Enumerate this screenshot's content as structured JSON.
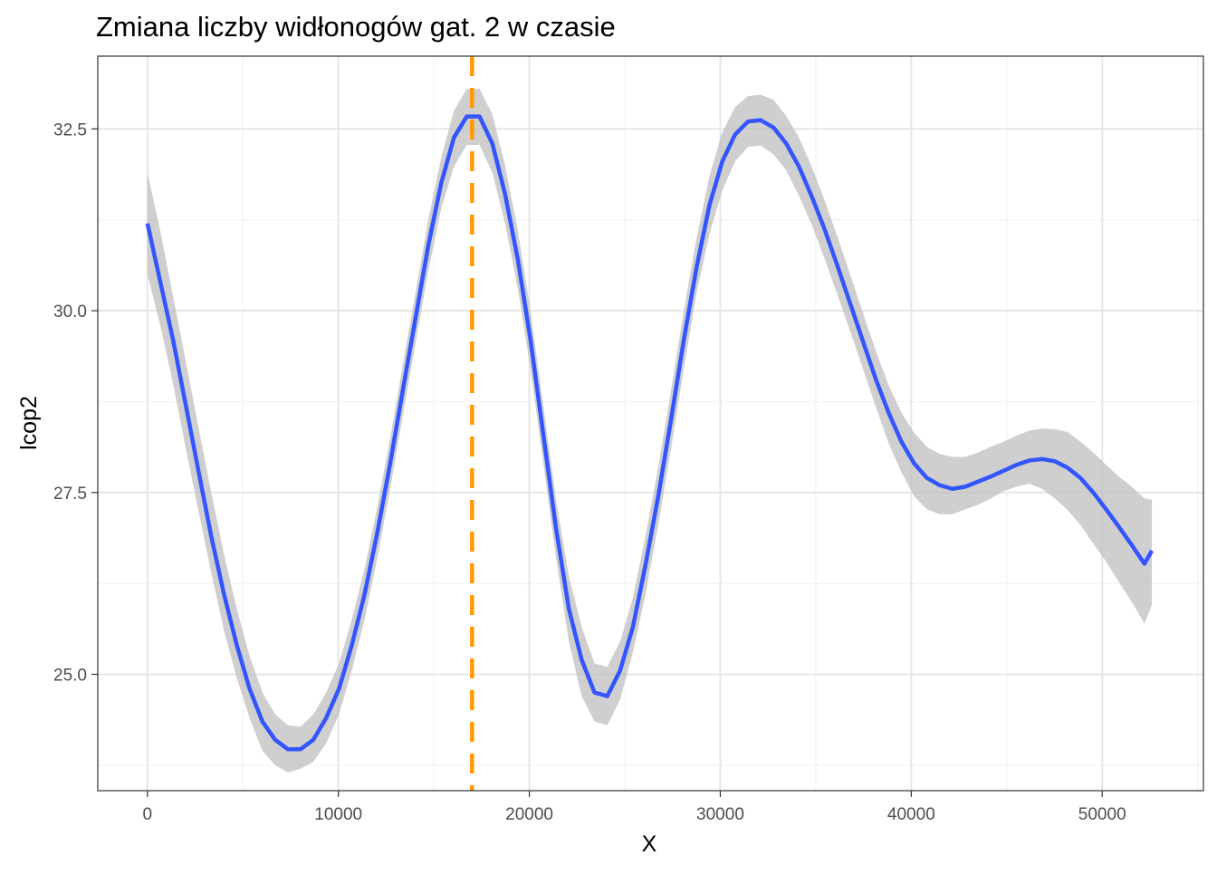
{
  "chart_data": {
    "type": "line",
    "title": "Zmiana liczby widłonogów gat. 2 w czasie",
    "xlabel": "X",
    "ylabel": "lcop2",
    "xlim": [
      -2600,
      55300
    ],
    "ylim": [
      23.4,
      33.5
    ],
    "x_ticks": [
      0,
      10000,
      20000,
      30000,
      40000,
      50000
    ],
    "x_tick_labels": [
      "0",
      "10000",
      "20000",
      "30000",
      "40000",
      "50000"
    ],
    "y_ticks": [
      25.0,
      27.5,
      30.0,
      32.5
    ],
    "y_tick_labels": [
      "25.0",
      "27.5",
      "30.0",
      "32.5"
    ],
    "grid": true,
    "theme": "bw",
    "vline": {
      "x": 17000,
      "color": "#FF9900",
      "style": "dashed"
    },
    "series": [
      {
        "color": "#3355FF",
        "ribbon_color": "#BFBFBF",
        "x": [
          0,
          670,
          1340,
          2010,
          2670,
          3340,
          4010,
          4680,
          5350,
          6020,
          6690,
          7350,
          8020,
          8690,
          9360,
          10030,
          10700,
          11370,
          12040,
          12710,
          13370,
          14040,
          14710,
          15380,
          16050,
          16720,
          17390,
          18060,
          18730,
          19400,
          20060,
          20730,
          21400,
          22070,
          22740,
          23410,
          24080,
          24750,
          25420,
          26080,
          26750,
          27420,
          28090,
          28760,
          29430,
          30100,
          30770,
          31440,
          32110,
          32780,
          33450,
          34120,
          34790,
          35460,
          36130,
          36800,
          37470,
          38140,
          38810,
          39480,
          40150,
          40820,
          41490,
          42160,
          42830,
          43500,
          44170,
          44840,
          45510,
          46180,
          46850,
          47520,
          48190,
          48860,
          49530,
          50200,
          50870,
          51540,
          52210,
          52600
        ],
        "y": [
          31.2,
          30.4,
          29.6,
          28.7,
          27.8,
          26.9,
          26.1,
          25.4,
          24.8,
          24.35,
          24.1,
          23.97,
          23.97,
          24.1,
          24.4,
          24.8,
          25.4,
          26.1,
          26.95,
          27.9,
          28.9,
          29.9,
          30.9,
          31.75,
          32.38,
          32.67,
          32.67,
          32.3,
          31.6,
          30.7,
          29.6,
          28.3,
          27.0,
          25.9,
          25.2,
          24.75,
          24.7,
          25.05,
          25.65,
          26.5,
          27.45,
          28.5,
          29.6,
          30.6,
          31.45,
          32.05,
          32.42,
          32.6,
          32.62,
          32.52,
          32.3,
          31.98,
          31.57,
          31.12,
          30.62,
          30.1,
          29.58,
          29.06,
          28.6,
          28.2,
          27.9,
          27.7,
          27.6,
          27.55,
          27.58,
          27.65,
          27.72,
          27.8,
          27.88,
          27.94,
          27.96,
          27.93,
          27.84,
          27.7,
          27.5,
          27.27,
          27.03,
          26.78,
          26.52,
          26.7
        ],
        "lower": [
          30.5,
          29.8,
          29.0,
          28.1,
          27.25,
          26.4,
          25.6,
          24.95,
          24.4,
          23.95,
          23.75,
          23.65,
          23.7,
          23.8,
          24.05,
          24.45,
          25.05,
          25.75,
          26.6,
          27.55,
          28.55,
          29.55,
          30.55,
          31.4,
          31.98,
          32.28,
          32.28,
          31.9,
          31.2,
          30.3,
          29.2,
          27.9,
          26.6,
          25.45,
          24.7,
          24.35,
          24.3,
          24.65,
          25.3,
          26.1,
          27.05,
          28.1,
          29.2,
          30.25,
          31.05,
          31.65,
          32.05,
          32.25,
          32.27,
          32.15,
          31.93,
          31.58,
          31.18,
          30.72,
          30.22,
          29.72,
          29.2,
          28.68,
          28.18,
          27.78,
          27.45,
          27.27,
          27.2,
          27.2,
          27.27,
          27.33,
          27.42,
          27.52,
          27.58,
          27.62,
          27.55,
          27.42,
          27.26,
          27.05,
          26.8,
          26.55,
          26.27,
          26.0,
          25.7,
          25.95
        ],
        "upper": [
          31.9,
          31.1,
          30.2,
          29.3,
          28.4,
          27.5,
          26.65,
          25.9,
          25.25,
          24.75,
          24.45,
          24.3,
          24.28,
          24.45,
          24.75,
          25.15,
          25.75,
          26.45,
          27.3,
          28.25,
          29.25,
          30.25,
          31.25,
          32.1,
          32.75,
          33.05,
          33.05,
          32.7,
          32.0,
          31.1,
          30.0,
          28.7,
          27.4,
          26.35,
          25.65,
          25.15,
          25.1,
          25.45,
          26.05,
          26.9,
          27.85,
          28.9,
          30.0,
          31.0,
          31.85,
          32.45,
          32.8,
          32.95,
          32.97,
          32.9,
          32.68,
          32.38,
          31.98,
          31.52,
          31.02,
          30.5,
          29.97,
          29.45,
          28.98,
          28.6,
          28.32,
          28.13,
          28.03,
          27.99,
          27.99,
          28.05,
          28.13,
          28.2,
          28.28,
          28.35,
          28.38,
          28.37,
          28.33,
          28.2,
          28.05,
          27.88,
          27.72,
          27.58,
          27.42,
          27.4
        ]
      }
    ]
  }
}
